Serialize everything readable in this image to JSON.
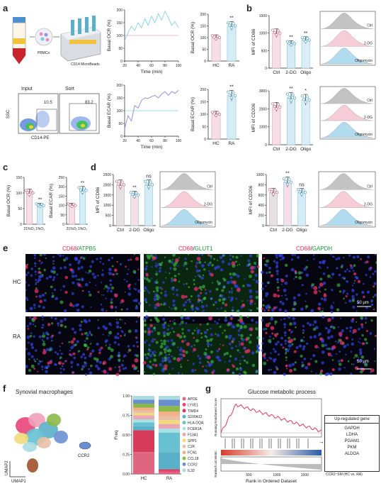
{
  "panels": {
    "a": "a",
    "b": "b",
    "c": "c",
    "d": "d",
    "e": "e",
    "f": "f",
    "g": "g"
  },
  "panel_a": {
    "pbmc_label": "PBMCs",
    "beads_label": "CD14 MicroBeads",
    "flow": {
      "input_title": "Input",
      "input_value": "10.5",
      "sort_title": "Sort",
      "sort_value": "83.2",
      "ylabel": "SSC",
      "xlabel": "CD14-PE"
    },
    "ocr_line": {
      "ylabel": "Basal OCR (%)",
      "xlabel": "Time (min)",
      "xticks": [
        "20",
        "40",
        "60",
        "80",
        "100"
      ],
      "yticks": [
        "0",
        "50",
        "100",
        "150",
        "200"
      ],
      "color": "#8fd3e8"
    },
    "ecar_line": {
      "ylabel": "Basal ECAR (%)",
      "xlabel": "Time (min)",
      "xticks": [
        "20",
        "40",
        "60",
        "80",
        "100"
      ],
      "yticks": [
        "0",
        "50",
        "100",
        "150",
        "200"
      ],
      "color": "#9b8fe0"
    },
    "ocr_bar": {
      "ylabel": "Basal OCR (%)",
      "cats": [
        "HC",
        "RA"
      ],
      "sig": "**",
      "yticks": [
        "0",
        "50",
        "100",
        "150",
        "200"
      ]
    },
    "ecar_bar": {
      "ylabel": "Basal ECAR (%)",
      "cats": [
        "HC",
        "RA"
      ],
      "sig": "**",
      "yticks": [
        "0",
        "50",
        "100",
        "150",
        "200"
      ]
    }
  },
  "panel_b": {
    "cd86": {
      "ylabel": "MFI of CD86",
      "cats": [
        "Ctrl",
        "2-DG",
        "Oligo"
      ],
      "sigs": [
        "",
        "**",
        "**"
      ],
      "yticks": [
        "0",
        "500",
        "1000",
        "1500"
      ]
    },
    "cd206": {
      "ylabel": "MFI of CD206",
      "cats": [
        "Ctrl",
        "2-DG",
        "Oligo"
      ],
      "sigs": [
        "",
        "**",
        "*"
      ],
      "yticks": [
        "0",
        "1000",
        "2000",
        "3000"
      ]
    },
    "hist_labels": [
      "Ctrl",
      "2-DG",
      "Oligomycin"
    ]
  },
  "panel_c": {
    "ocr": {
      "ylabel": "Basal OCR (%)",
      "cats": [
        "21%O₂",
        "1%O₂"
      ],
      "sig": "**",
      "yticks": [
        "0",
        "50",
        "100",
        "150"
      ]
    },
    "ecar": {
      "ylabel": "Basal ECAR (%)",
      "cats": [
        "21%O₂",
        "1%O₂"
      ],
      "sig": "**",
      "yticks": [
        "0",
        "50",
        "100",
        "150",
        "200",
        "250"
      ]
    }
  },
  "panel_d": {
    "cd86": {
      "ylabel": "MFI of CD86",
      "cats": [
        "Ctrl",
        "2-DG",
        "Oligo"
      ],
      "sigs": [
        "",
        "**",
        "ns"
      ],
      "yticks": [
        "0",
        "500",
        "1000",
        "1500",
        "2000",
        "2500"
      ]
    },
    "cd206": {
      "ylabel": "MFI of CD206",
      "cats": [
        "Ctrl",
        "2-DG",
        "Oligo"
      ],
      "sigs": [
        "",
        "**",
        "ns"
      ],
      "yticks": [
        "0",
        "200",
        "400",
        "600",
        "800",
        "1000"
      ]
    },
    "hist_labels": [
      "Ctrl",
      "2-DG",
      "Oligomycin"
    ]
  },
  "panel_e": {
    "titles": [
      {
        "red": "CD68",
        "sep": "/",
        "green": "ATPB5"
      },
      {
        "red": "CD68",
        "sep": "/",
        "green": "GLUT1"
      },
      {
        "red": "CD68",
        "sep": "/",
        "green": "GAPDH"
      }
    ],
    "rows": [
      "HC",
      "RA"
    ],
    "scale": "50 μm"
  },
  "panel_f": {
    "title": "Synovial macrophages",
    "umap1": "UMAP1",
    "umap2": "UMAP2",
    "ccr2": "CCR2",
    "freq_label": "Freq",
    "yticks": [
      "0.00",
      "0.25",
      "0.50",
      "0.75",
      "1.00"
    ],
    "cats": [
      "HC",
      "RA"
    ]
  },
  "panel_g": {
    "title": "Glucose metabolic process",
    "ylabel_top": "Running Enrichment Score",
    "ylabel_bottom": "Ranked List Metric",
    "xlabel": "Rank in Ordered Dataset",
    "xticks": [
      "500",
      "1000",
      "1500"
    ],
    "table_header": "Up-regulated gene",
    "genes": [
      "GAPDH",
      "LDHA",
      "PGAM1",
      "PKM",
      "ALDOA"
    ],
    "footnote": "CCR2⁺SM (HC vs. RA)"
  },
  "chart_data": [
    {
      "type": "line",
      "title": "",
      "ylabel": "Basal OCR (%)",
      "xlabel": "Time (min)",
      "xlim": [
        20,
        100
      ],
      "ylim": [
        0,
        200
      ],
      "series": [
        {
          "x": [
            20,
            25,
            30,
            35,
            40,
            45,
            50,
            55,
            60,
            65,
            70,
            75,
            80,
            85,
            90,
            95,
            100
          ],
          "values": [
            80,
            110,
            135,
            120,
            150,
            130,
            165,
            140,
            175,
            150,
            185,
            160,
            195,
            170,
            140,
            155,
            130
          ]
        }
      ],
      "reference_line": 100
    },
    {
      "type": "line",
      "title": "",
      "ylabel": "Basal ECAR (%)",
      "xlabel": "Time (min)",
      "xlim": [
        20,
        100
      ],
      "ylim": [
        0,
        200
      ],
      "series": [
        {
          "x": [
            20,
            25,
            30,
            35,
            40,
            45,
            50,
            55,
            60,
            65,
            70,
            75,
            80,
            85,
            90,
            95,
            100
          ],
          "values": [
            30,
            80,
            60,
            120,
            110,
            140,
            150,
            148,
            155,
            160,
            150,
            165,
            175,
            160,
            175,
            168,
            180
          ]
        }
      ],
      "reference_line": 100
    },
    {
      "type": "bar",
      "title": "",
      "ylabel": "Basal OCR (%)",
      "categories": [
        "HC",
        "RA"
      ],
      "values": [
        100,
        150
      ],
      "ylim": [
        0,
        200
      ],
      "annotations": [
        "",
        "**"
      ],
      "colors": [
        "#f4e0e6",
        "#d8eef5"
      ]
    },
    {
      "type": "bar",
      "title": "",
      "ylabel": "Basal ECAR (%)",
      "categories": [
        "HC",
        "RA"
      ],
      "values": [
        100,
        175
      ],
      "ylim": [
        0,
        200
      ],
      "annotations": [
        "",
        "**"
      ],
      "colors": [
        "#f4e0e6",
        "#d8eef5"
      ]
    },
    {
      "type": "bar",
      "title": "",
      "ylabel": "MFI of CD86",
      "categories": [
        "Ctrl",
        "2-DG",
        "Oligo"
      ],
      "values": [
        1000,
        700,
        800
      ],
      "ylim": [
        0,
        1500
      ],
      "annotations": [
        "",
        "**",
        "**"
      ]
    },
    {
      "type": "bar",
      "title": "",
      "ylabel": "MFI of CD206",
      "categories": [
        "Ctrl",
        "2-DG",
        "Oligo"
      ],
      "values": [
        2100,
        2600,
        2500
      ],
      "ylim": [
        0,
        3000
      ],
      "annotations": [
        "",
        "**",
        "*"
      ]
    },
    {
      "type": "bar",
      "title": "",
      "ylabel": "Basal OCR (%)",
      "categories": [
        "21%O₂",
        "1%O₂"
      ],
      "values": [
        100,
        60
      ],
      "ylim": [
        0,
        150
      ],
      "annotations": [
        "",
        "**"
      ]
    },
    {
      "type": "bar",
      "title": "",
      "ylabel": "Basal ECAR (%)",
      "categories": [
        "21%O₂",
        "1%O₂"
      ],
      "values": [
        100,
        180
      ],
      "ylim": [
        0,
        250
      ],
      "annotations": [
        "",
        "**"
      ]
    },
    {
      "type": "bar",
      "title": "",
      "ylabel": "MFI of CD86",
      "categories": [
        "Ctrl",
        "2-DG",
        "Oligo"
      ],
      "values": [
        2000,
        1500,
        2000
      ],
      "ylim": [
        0,
        2500
      ],
      "annotations": [
        "",
        "**",
        "ns"
      ]
    },
    {
      "type": "bar",
      "title": "",
      "ylabel": "MFI of CD206",
      "categories": [
        "Ctrl",
        "2-DG",
        "Oligo"
      ],
      "values": [
        650,
        850,
        650
      ],
      "ylim": [
        0,
        1000
      ],
      "annotations": [
        "",
        "**",
        "ns"
      ]
    },
    {
      "type": "bar",
      "title": "",
      "ylabel": "Freq",
      "categories": [
        "HC",
        "RA"
      ],
      "ylim": [
        0,
        1
      ],
      "series": [
        {
          "name": "APOE",
          "values": [
            0.28,
            0.02
          ],
          "color": "#e06680"
        },
        {
          "name": "LYVE1",
          "values": [
            0.0,
            0.02
          ],
          "color": "#e8457a"
        },
        {
          "name": "TIMD4",
          "values": [
            0.28,
            0.02
          ],
          "color": "#d63c5a"
        },
        {
          "name": "S100A12",
          "values": [
            0.05,
            0.22
          ],
          "color": "#5ab0c8"
        },
        {
          "name": "HLA-DQA2",
          "values": [
            0.05,
            0.25
          ],
          "color": "#67c1d0"
        },
        {
          "name": "FCER1A",
          "values": [
            0.04,
            0.05
          ],
          "color": "#a7e0e5"
        },
        {
          "name": "F13A1",
          "values": [
            0.05,
            0.06
          ],
          "color": "#e8a6b6"
        },
        {
          "name": "SPP1",
          "values": [
            0.03,
            0.05
          ],
          "color": "#f3d97a"
        },
        {
          "name": "C1R",
          "values": [
            0.03,
            0.05
          ],
          "color": "#e8c0a8"
        },
        {
          "name": "FCN1",
          "values": [
            0.04,
            0.06
          ],
          "color": "#f2b088"
        },
        {
          "name": "CCL18",
          "values": [
            0.05,
            0.07
          ],
          "color": "#8cb84a"
        },
        {
          "name": "CCR2",
          "values": [
            0.05,
            0.08
          ],
          "color": "#6a8fd0"
        },
        {
          "name": "IL32",
          "values": [
            0.05,
            0.05
          ],
          "color": "#aadbe0"
        }
      ]
    }
  ]
}
